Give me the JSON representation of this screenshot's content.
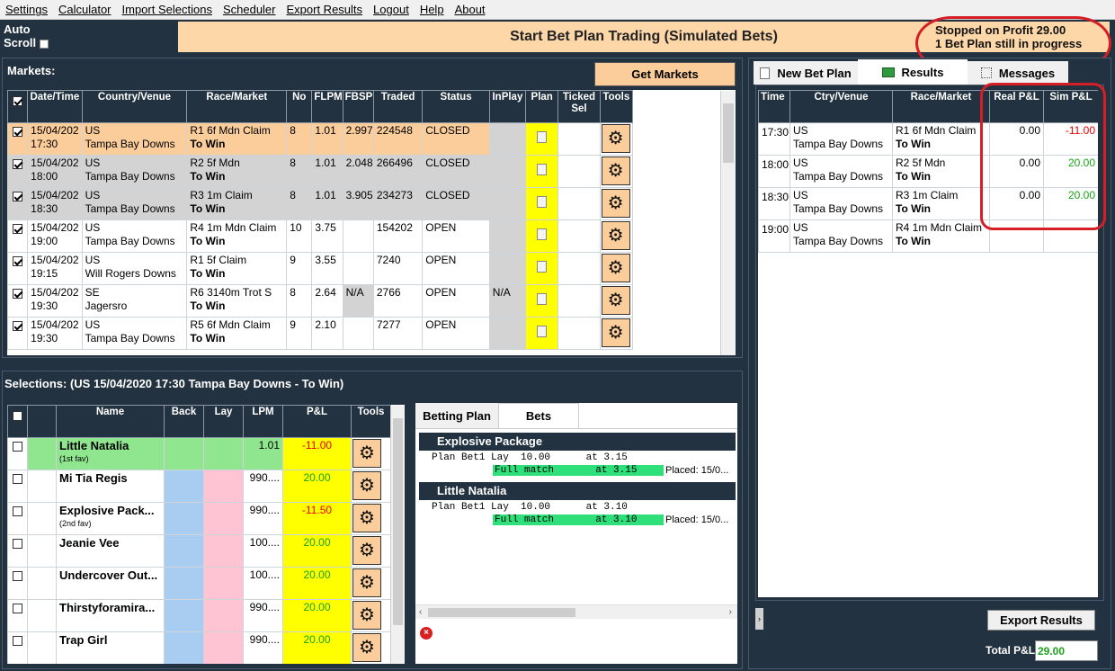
{
  "menu": [
    "Settings",
    "Calculator",
    "Import Selections",
    "Scheduler",
    "Export Results",
    "Logout",
    "Help",
    "About"
  ],
  "autoscroll": {
    "line1": "Auto",
    "line2": "Scroll"
  },
  "banner": {
    "title": "Start Bet Plan Trading (Simulated Bets)"
  },
  "status": {
    "line1": "Stopped on Profit 29.00",
    "line2": "1 Bet Plan still in progress"
  },
  "markets": {
    "title": "Markets:",
    "get_button": "Get Markets",
    "headers": [
      "Date/Time",
      "Country/Venue",
      "Race/Market",
      "No",
      "FLPM",
      "FBSP",
      "Traded",
      "Status",
      "InPlay",
      "Plan",
      "Ticked Sel",
      "Tools"
    ],
    "rows": [
      {
        "date": "15/04/202",
        "time": "17:30",
        "country": "US",
        "venue": "Tampa Bay Downs",
        "race": "R1 6f Mdn Claim",
        "market": "To Win",
        "no": "8",
        "flpm": "1.01",
        "fbsp": "2.997",
        "traded": "224548",
        "status": "CLOSED",
        "inplay": ""
      },
      {
        "date": "15/04/202",
        "time": "18:00",
        "country": "US",
        "venue": "Tampa Bay Downs",
        "race": "R2 5f Mdn",
        "market": "To Win",
        "no": "8",
        "flpm": "1.01",
        "fbsp": "2.048",
        "traded": "266496",
        "status": "CLOSED",
        "inplay": ""
      },
      {
        "date": "15/04/202",
        "time": "18:30",
        "country": "US",
        "venue": "Tampa Bay Downs",
        "race": "R3 1m Claim",
        "market": "To Win",
        "no": "8",
        "flpm": "1.01",
        "fbsp": "3.905",
        "traded": "234273",
        "status": "CLOSED",
        "inplay": ""
      },
      {
        "date": "15/04/202",
        "time": "19:00",
        "country": "US",
        "venue": "Tampa Bay Downs",
        "race": "R4 1m Mdn Claim",
        "market": "To Win",
        "no": "10",
        "flpm": "3.75",
        "fbsp": "",
        "traded": "154202",
        "status": "OPEN",
        "inplay": ""
      },
      {
        "date": "15/04/202",
        "time": "19:15",
        "country": "US",
        "venue": "Will Rogers Downs",
        "race": "R1 5f Claim",
        "market": "To Win",
        "no": "9",
        "flpm": "3.55",
        "fbsp": "",
        "traded": "7240",
        "status": "OPEN",
        "inplay": ""
      },
      {
        "date": "15/04/202",
        "time": "19:30",
        "country": "SE",
        "venue": "Jagersro",
        "race": "R6 3140m Trot S",
        "market": "To Win",
        "no": "8",
        "flpm": "2.64",
        "fbsp": "N/A",
        "traded": "2766",
        "status": "OPEN",
        "inplay": "N/A"
      },
      {
        "date": "15/04/202",
        "time": "19:30",
        "country": "US",
        "venue": "Tampa Bay Downs",
        "race": "R5 6f Mdn Claim",
        "market": "To Win",
        "no": "9",
        "flpm": "2.10",
        "fbsp": "",
        "traded": "7277",
        "status": "OPEN",
        "inplay": ""
      }
    ]
  },
  "selections": {
    "title": "Selections:  (US 15/04/2020 17:30 Tampa Bay Downs - To Win)",
    "headers": [
      "Name",
      "Back",
      "Lay",
      "LPM",
      "P&L",
      "Tools"
    ],
    "rows": [
      {
        "name": "Little Natalia",
        "sub": "(1st fav)",
        "lpm": "1.01",
        "pl": "-11.00"
      },
      {
        "name": "Mi Tia Regis",
        "sub": "",
        "lpm": "990....",
        "pl": "20.00"
      },
      {
        "name": "Explosive Pack...",
        "sub": "(2nd fav)",
        "lpm": "990....",
        "pl": "-11.50"
      },
      {
        "name": "Jeanie Vee",
        "sub": "",
        "lpm": "100....",
        "pl": "20.00"
      },
      {
        "name": "Undercover Out...",
        "sub": "",
        "lpm": "100....",
        "pl": "20.00"
      },
      {
        "name": "Thirstyforamira...",
        "sub": "",
        "lpm": "990....",
        "pl": "20.00"
      },
      {
        "name": "Trap Girl",
        "sub": "",
        "lpm": "990....",
        "pl": "20.00"
      }
    ]
  },
  "bets": {
    "tabs": [
      "Betting Plan",
      "Bets"
    ],
    "groups": [
      {
        "title": "Explosive Package",
        "line1": "Plan Bet1 Lay  10.00      at 3.15",
        "match": "Full match       at 3.15",
        "placed": "Placed: 15/0..."
      },
      {
        "title": "Little Natalia",
        "line1": "Plan Bet1 Lay  10.00      at 3.10",
        "match": "Full match       at 3.10",
        "placed": "Placed: 15/0..."
      }
    ]
  },
  "results": {
    "tabs": [
      "New Bet Plan",
      "Results",
      "Messages"
    ],
    "headers": [
      "Time",
      "Ctry/Venue",
      "Race/Market",
      "Real P&L",
      "Sim P&L"
    ],
    "rows": [
      {
        "time": "17:30",
        "country": "US",
        "venue": "Tampa Bay Downs",
        "race": "R1 6f Mdn Claim",
        "market": "To Win",
        "real": "0.00",
        "sim": "-11.00"
      },
      {
        "time": "18:00",
        "country": "US",
        "venue": "Tampa Bay Downs",
        "race": "R2 5f Mdn",
        "market": "To Win",
        "real": "0.00",
        "sim": "20.00"
      },
      {
        "time": "18:30",
        "country": "US",
        "venue": "Tampa Bay Downs",
        "race": "R3 1m Claim",
        "market": "To Win",
        "real": "0.00",
        "sim": "20.00"
      },
      {
        "time": "19:00",
        "country": "US",
        "venue": "Tampa Bay Downs",
        "race": "R4 1m Mdn Claim",
        "market": "To Win",
        "real": "",
        "sim": ""
      }
    ],
    "export_button": "Export Results",
    "total_label": "Total P&L",
    "total_value": "29.00"
  },
  "colors": {
    "accent": "#fbcd9b",
    "plan": "#ffff00",
    "negative": "#ee0000",
    "positive": "#19a319",
    "annotation": "#d61e27"
  }
}
